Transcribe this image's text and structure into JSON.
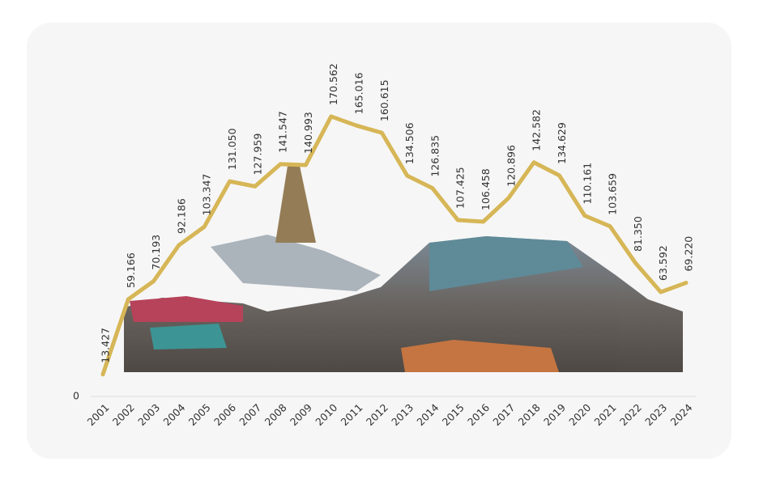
{
  "chart_data": {
    "type": "line",
    "categories": [
      "2001",
      "2002",
      "2003",
      "2004",
      "2005",
      "2006",
      "2007",
      "2008",
      "2009",
      "2010",
      "2011",
      "2012",
      "2013",
      "2014",
      "2015",
      "2016",
      "2017",
      "2018",
      "2019",
      "2020",
      "2021",
      "2022",
      "2023",
      "2024"
    ],
    "series": [
      {
        "color": "#d6b656",
        "values": [
          13427,
          59166,
          70193,
          92186,
          103347,
          131050,
          127959,
          141547,
          140993,
          170562,
          165016,
          160615,
          134506,
          126835,
          107425,
          106458,
          120896,
          142582,
          134629,
          110161,
          103659,
          81350,
          63592,
          69220
        ],
        "value_labels": [
          "13.427",
          "59.166",
          "70.193",
          "92.186",
          "103.347",
          "131.050",
          "127.959",
          "141.547",
          "140.993",
          "170.562",
          "165.016",
          "160.615",
          "134.506",
          "126.835",
          "107.425",
          "106.458",
          "120.896",
          "142.582",
          "134.629",
          "110.161",
          "103.659",
          "81.350",
          "63.592",
          "69.220"
        ]
      }
    ],
    "ylim": [
      0,
      180000
    ],
    "yticks": [
      0
    ]
  }
}
